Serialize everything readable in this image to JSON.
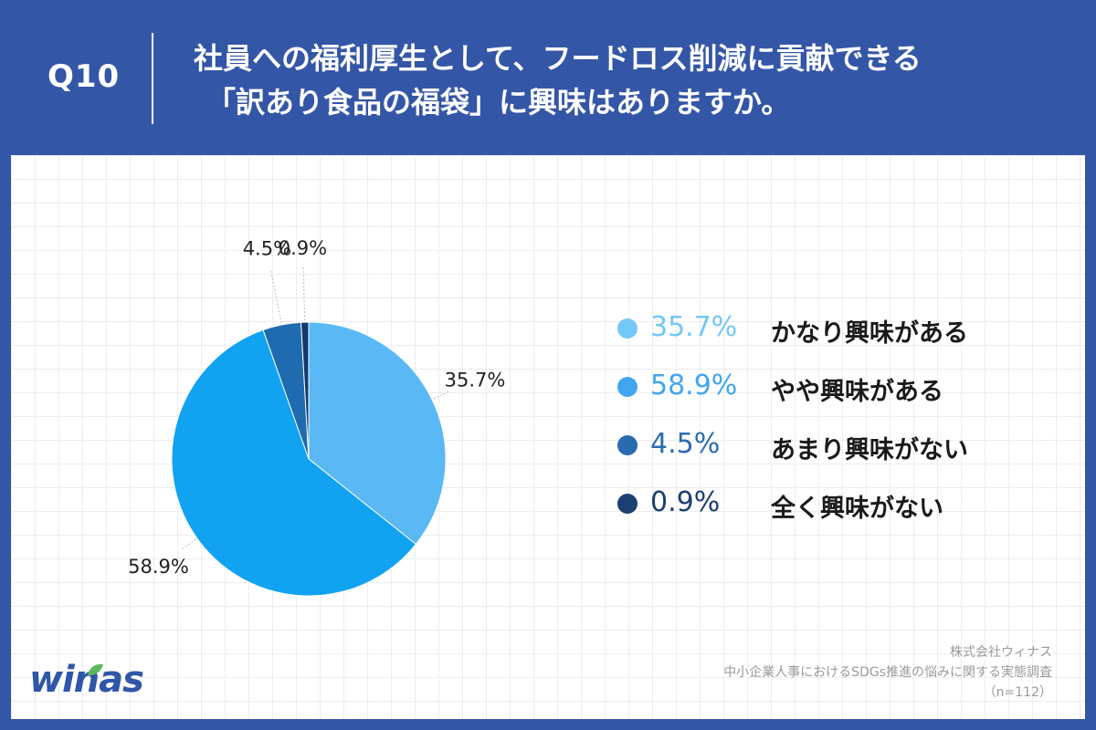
{
  "header": {
    "qnum": "Q10",
    "question_line1": "社員への福利厚生として、フードロス削減に貢献できる",
    "question_line2": "「訳あり食品の福袋」に興味はありますか。"
  },
  "chart_data": {
    "type": "pie",
    "title": "",
    "unit": "%",
    "start_angle_deg": 0,
    "direction": "clockwise",
    "slices": [
      {
        "label": "かなり興味がある",
        "value": 35.7,
        "display": "35.7%",
        "color": "#5ab9f5"
      },
      {
        "label": "やや興味がある",
        "value": 58.9,
        "display": "58.9%",
        "color": "#11a2f2"
      },
      {
        "label": "あまり興味がない",
        "value": 4.5,
        "display": "4.5%",
        "color": "#1e6bb0"
      },
      {
        "label": "全く興味がない",
        "value": 0.9,
        "display": "0.9%",
        "color": "#13386b"
      }
    ],
    "legend_position": "right"
  },
  "legend": {
    "items": [
      {
        "pct": "35.7%",
        "label": "かなり興味がある",
        "color": "#73c8f7"
      },
      {
        "pct": "58.9%",
        "label": "やや興味がある",
        "color": "#41a6ef"
      },
      {
        "pct": "4.5%",
        "label": "あまり興味がない",
        "color": "#2a6bb0"
      },
      {
        "pct": "0.9%",
        "label": "全く興味がない",
        "color": "#1b3f72"
      }
    ]
  },
  "credit": {
    "company": "株式会社ウィナス",
    "survey": "中小企業人事におけるSDGs推進の悩みに関する実態調査",
    "n": "（n=112）"
  },
  "logo": {
    "text": "winas",
    "brand_color": "#2f56a8",
    "leaf_color": "#5cb85c"
  },
  "colors": {
    "header_bg": "#3456a6",
    "card_bg": "#ffffff"
  }
}
